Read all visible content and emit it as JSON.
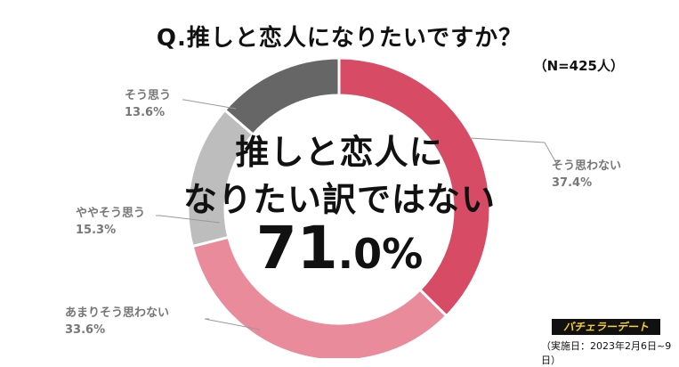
{
  "title": "Q.推しと恋人になりたいですか？",
  "sample": "（N=425人）",
  "center": {
    "line1": "推しと恋人に",
    "line2": "なりたい訳ではない",
    "value_int": "71",
    "value_rest": ".0%"
  },
  "source": {
    "badge": "バチェラーデート",
    "period": "（実施日：2023年2月6日~9日）"
  },
  "chart_data": {
    "type": "pie",
    "title": "Q.推しと恋人になりたいですか？",
    "slices": [
      {
        "label": "そう思わない",
        "value": 37.4,
        "value_text": "37.4%",
        "color": "#d84b65"
      },
      {
        "label": "あまりそう思わない",
        "value": 33.6,
        "value_text": "33.6%",
        "color": "#ea8b9c"
      },
      {
        "label": "ややそう思う",
        "value": 15.3,
        "value_text": "15.3%",
        "color": "#bdbdbd"
      },
      {
        "label": "そう思う",
        "value": 13.6,
        "value_text": "13.6%",
        "color": "#666666"
      }
    ]
  }
}
